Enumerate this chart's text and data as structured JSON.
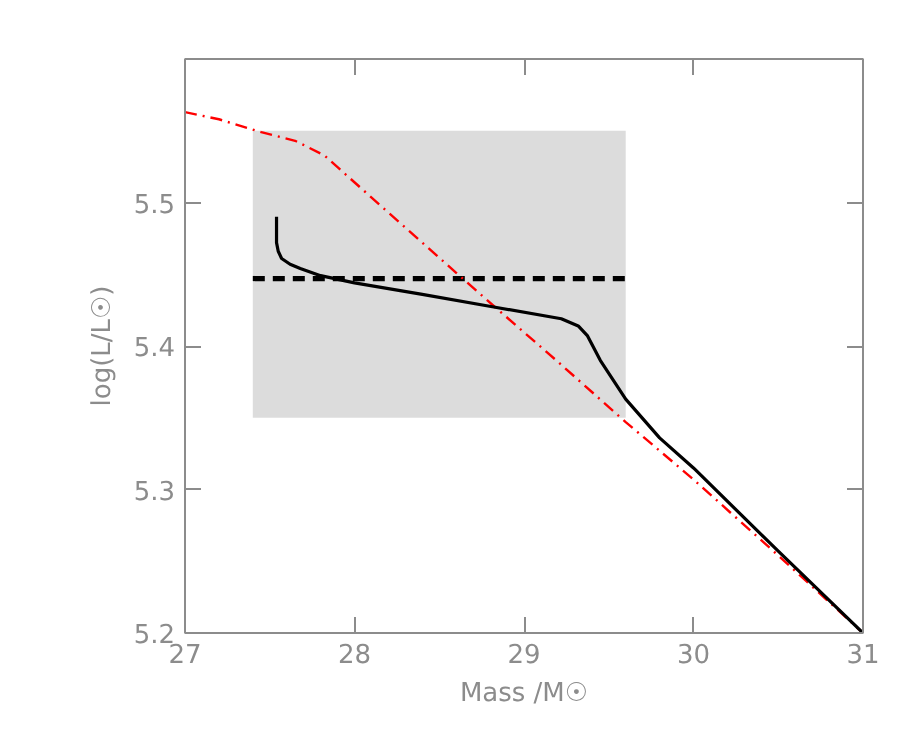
{
  "chart_data": {
    "type": "line",
    "xlabel": "Mass /M☉",
    "ylabel": "log(L/L☉)",
    "xlim": [
      27,
      31
    ],
    "ylim": [
      5.2,
      5.6
    ],
    "xticks": [
      27,
      28,
      29,
      30,
      31
    ],
    "yticks": [
      5.2,
      5.3,
      5.4,
      5.5
    ],
    "grid": false,
    "series": [
      {
        "color": "#000000",
        "line_style": "dashed",
        "x": [
          27.4,
          29.6
        ],
        "values": [
          5.447,
          5.447
        ],
        "lower": [
          5.35,
          5.35
        ],
        "upper": [
          5.55,
          5.55
        ]
      },
      {
        "color": "#ff0000",
        "line_style": "dashdot",
        "x": [
          27.0,
          27.2,
          27.45,
          27.65,
          27.82,
          28.2,
          28.6,
          28.83,
          29.2,
          29.6,
          30.0,
          30.5,
          31.0
        ],
        "values": [
          5.563,
          5.558,
          5.549,
          5.543,
          5.533,
          5.493,
          5.451,
          5.427,
          5.389,
          5.347,
          5.307,
          5.254,
          5.2
        ]
      },
      {
        "color": "#000000",
        "line_style": "solid",
        "x": [
          27.54,
          27.54,
          27.55,
          27.57,
          27.62,
          27.68,
          27.8,
          28.0,
          28.4,
          28.83,
          29.22,
          29.32,
          29.375,
          29.45,
          29.6,
          29.8,
          30.0,
          30.5,
          31.0
        ],
        "values": [
          5.49,
          5.472,
          5.466,
          5.461,
          5.457,
          5.454,
          5.449,
          5.444,
          5.436,
          5.427,
          5.419,
          5.414,
          5.407,
          5.39,
          5.363,
          5.336,
          5.315,
          5.257,
          5.2
        ]
      }
    ]
  }
}
